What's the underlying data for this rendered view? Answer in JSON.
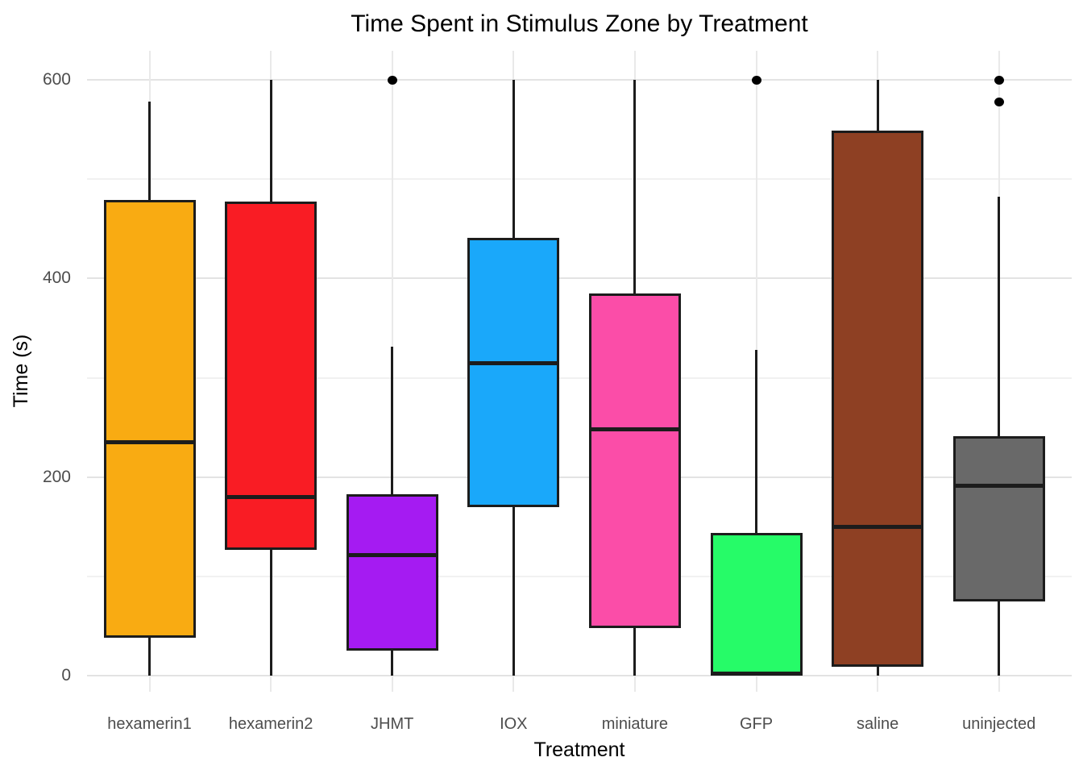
{
  "chart_data": {
    "type": "boxplot",
    "title": "Time Spent in Stimulus Zone by Treatment",
    "xlabel": "Treatment",
    "ylabel": "Time (s)",
    "ylim": [
      0,
      620
    ],
    "yticks_major": [
      0,
      200,
      400,
      600
    ],
    "yticks_minor": [
      100,
      300,
      500
    ],
    "grid": true,
    "legend": false,
    "categories": [
      "hexamerin1",
      "hexamerin2",
      "JHMT",
      "IOX",
      "miniature",
      "GFP",
      "saline",
      "uninjected"
    ],
    "series": [
      {
        "name": "hexamerin1",
        "color": "#F9AB12",
        "whisker_low": 0,
        "q1": 38,
        "median": 235,
        "q3": 479,
        "whisker_high": 578,
        "outliers": []
      },
      {
        "name": "hexamerin2",
        "color": "#F91C24",
        "whisker_low": 0,
        "q1": 127,
        "median": 180,
        "q3": 477,
        "whisker_high": 600,
        "outliers": []
      },
      {
        "name": "JHMT",
        "color": "#A51BF2",
        "whisker_low": 0,
        "q1": 25,
        "median": 121,
        "q3": 183,
        "whisker_high": 331,
        "outliers": [
          600
        ]
      },
      {
        "name": "IOX",
        "color": "#1AA8FA",
        "whisker_low": 0,
        "q1": 170,
        "median": 315,
        "q3": 441,
        "whisker_high": 600,
        "outliers": []
      },
      {
        "name": "miniature",
        "color": "#FB4DA8",
        "whisker_low": 0,
        "q1": 48,
        "median": 248,
        "q3": 385,
        "whisker_high": 600,
        "outliers": []
      },
      {
        "name": "GFP",
        "color": "#26FB68",
        "whisker_low": 0,
        "q1": 0,
        "median": 2,
        "q3": 144,
        "whisker_high": 328,
        "outliers": [
          600
        ]
      },
      {
        "name": "saline",
        "color": "#8E4023",
        "whisker_low": 0,
        "q1": 9,
        "median": 150,
        "q3": 549,
        "whisker_high": 600,
        "outliers": []
      },
      {
        "name": "uninjected",
        "color": "#696969",
        "whisker_low": 0,
        "q1": 75,
        "median": 191,
        "q3": 241,
        "whisker_high": 482,
        "outliers": [
          600,
          578
        ]
      }
    ],
    "colors": {
      "box_outline": "#1C1C1C",
      "median": "#1C1C1C",
      "whisker": "#1C1C1C",
      "outlier": "#000000",
      "grid_major": "#E3E3E3",
      "grid_minor": "#F1F1F1",
      "grid_vertical": "#E9E9E9",
      "tick_label": "#4D4D4D",
      "title_text": "#000000",
      "background": "#FFFFFF"
    }
  }
}
